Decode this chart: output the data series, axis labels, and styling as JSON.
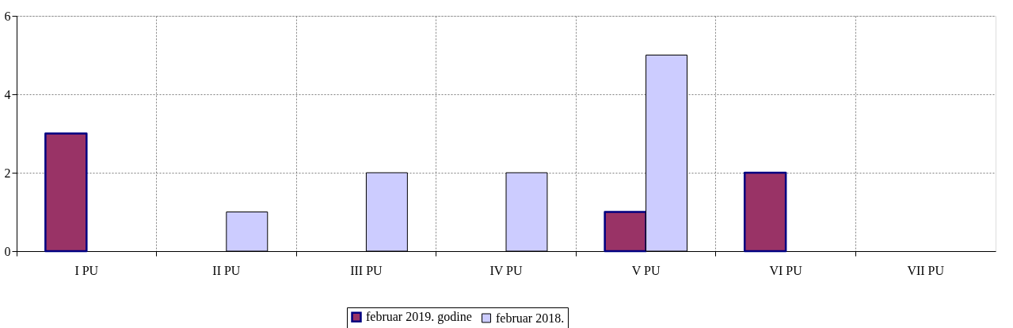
{
  "chart_data": {
    "type": "bar",
    "categories": [
      "I PU",
      "II PU",
      "III PU",
      "IV PU",
      "V PU",
      "VI PU",
      "VII PU"
    ],
    "series": [
      {
        "name": "februar 2019. godine",
        "color": "#993366",
        "values": [
          3,
          null,
          null,
          null,
          1,
          2,
          null
        ]
      },
      {
        "name": "februar 2018.",
        "color": "#ccccff",
        "values": [
          null,
          1,
          2,
          2,
          5,
          null,
          null
        ]
      }
    ],
    "ylim": [
      0,
      6
    ],
    "yticks": [
      0,
      2,
      4,
      6
    ],
    "grid": true,
    "legend": "bottom"
  }
}
